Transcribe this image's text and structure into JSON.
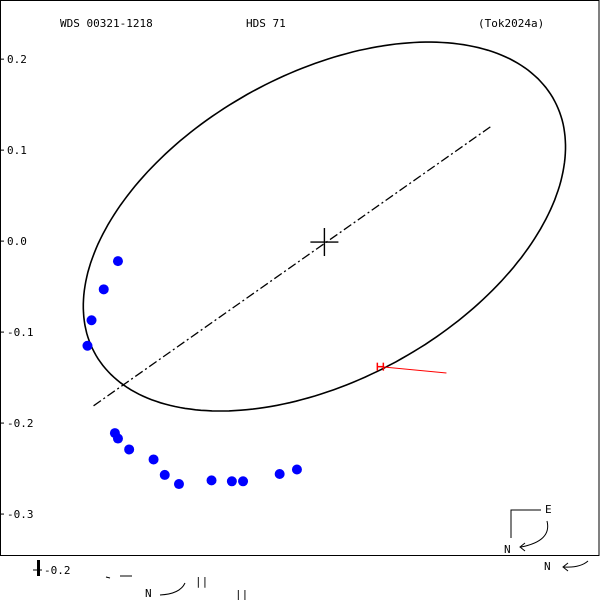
{
  "header": {
    "wds_id": "WDS 00321-1218",
    "discoverer": "HDS  71",
    "reference": "(Tok2024a)"
  },
  "chart_data": {
    "type": "scatter",
    "title": "",
    "xlabel": "",
    "ylabel": "",
    "y_tick_labels": [
      "0.2",
      "0.1",
      "0.0",
      "-0.1",
      "-0.2",
      "-0.3"
    ],
    "y_ticks": [
      0.2,
      0.1,
      0.0,
      -0.1,
      -0.2,
      -0.3
    ],
    "x_range": [
      -0.02,
      0.57
    ],
    "y_range": [
      -0.345,
      0.265
    ],
    "orbit_ellipse": {
      "center": [
        0.299,
        0.016
      ],
      "semi_major": 0.266,
      "semi_minor": 0.163,
      "rotation_deg": 35
    },
    "primary_star": [
      0.299,
      -0.001
    ],
    "line_of_apsides": {
      "start": [
        0.072,
        -0.181
      ],
      "end": [
        0.464,
        0.127
      ]
    },
    "observations": [
      [
        0.096,
        -0.022
      ],
      [
        0.082,
        -0.053
      ],
      [
        0.07,
        -0.087
      ],
      [
        0.066,
        -0.115
      ],
      [
        0.093,
        -0.211
      ],
      [
        0.096,
        -0.217
      ],
      [
        0.107,
        -0.229
      ],
      [
        0.131,
        -0.24
      ],
      [
        0.142,
        -0.257
      ],
      [
        0.156,
        -0.267
      ],
      [
        0.188,
        -0.263
      ],
      [
        0.208,
        -0.264
      ],
      [
        0.219,
        -0.264
      ],
      [
        0.255,
        -0.256
      ],
      [
        0.272,
        -0.251
      ]
    ],
    "residual": {
      "from": [
        0.354,
        -0.138
      ],
      "to": [
        0.419,
        -0.145
      ]
    },
    "colors": {
      "observation": "#0000ff",
      "residual": "#ff0000",
      "orbit": "#000000"
    }
  },
  "compass": {
    "east_label": "E",
    "north_label": "N",
    "north_label_2": "N",
    "north_label_3": "N",
    "scale_label": "-0.2",
    "pipe_label": "||",
    "pipe_label_2": "||"
  }
}
